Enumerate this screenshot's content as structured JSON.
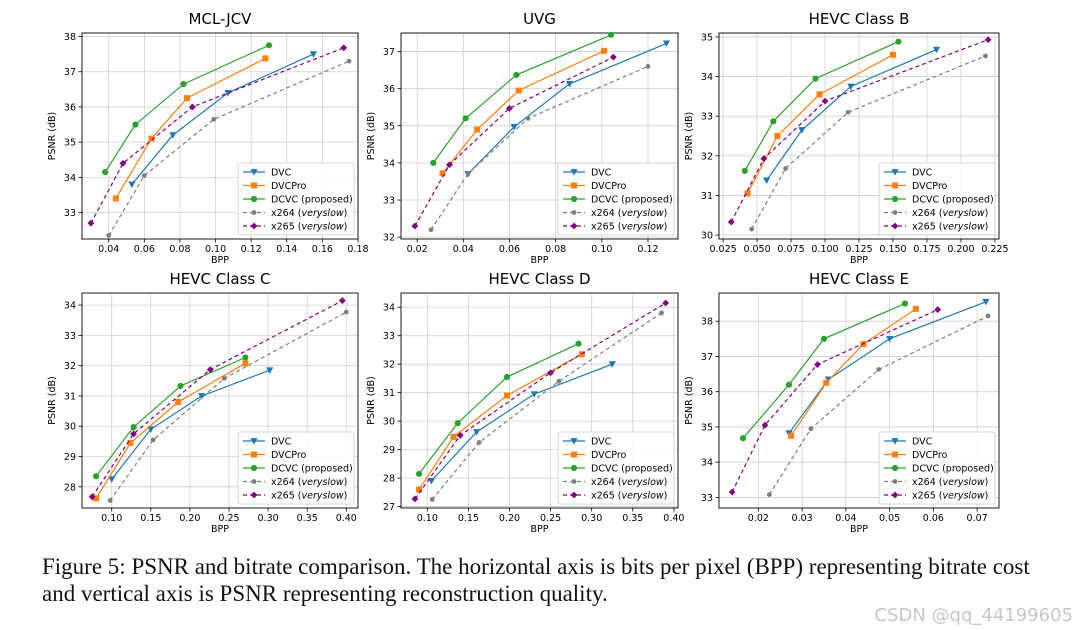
{
  "figure_caption": "Figure 5: PSNR and bitrate comparison. The horizontal axis is bits per pixel (BPP) representing bitrate cost and vertical axis is PSNR representing reconstruction quality.",
  "watermark": "CSDN @qq_44199605",
  "colors": {
    "DVC": "#1f77b4",
    "DVCPro": "#ff7f0e",
    "DCVC": "#2ca02c",
    "x264": "#7f7f7f",
    "x265": "#800080"
  },
  "legend_labels": [
    {
      "key": "DVC",
      "text": "DVC",
      "italic": ""
    },
    {
      "key": "DVCPro",
      "text": "DVCPro",
      "italic": ""
    },
    {
      "key": "DCVC",
      "text": "DCVC (proposed)",
      "italic": ""
    },
    {
      "key": "x264",
      "text": "x264 (",
      "italic": "veryslow",
      "tail": ")"
    },
    {
      "key": "x265",
      "text": "x265 (",
      "italic": "veryslow",
      "tail": ")"
    }
  ],
  "chart_data": [
    {
      "type": "line",
      "title": "MCL-JCV",
      "xlabel": "BPP",
      "ylabel": "PSNR (dB)",
      "xlim": [
        0.025,
        0.18
      ],
      "ylim": [
        32.25,
        38.1
      ],
      "xticks": [
        0.04,
        0.06,
        0.08,
        0.1,
        0.12,
        0.14,
        0.16,
        0.18
      ],
      "xtick_labels": [
        "0.04",
        "0.06",
        "0.08",
        "0.10",
        "0.12",
        "0.14",
        "0.16",
        "0.18"
      ],
      "yticks": [
        33,
        34,
        35,
        36,
        37,
        38
      ],
      "ytick_labels": [
        "33",
        "34",
        "35",
        "36",
        "37",
        "38"
      ],
      "series": [
        {
          "name": "DVC",
          "x": [
            0.053,
            0.076,
            0.107,
            0.155
          ],
          "y": [
            33.8,
            35.2,
            36.4,
            37.5
          ]
        },
        {
          "name": "DVCPro",
          "x": [
            0.044,
            0.064,
            0.084,
            0.128
          ],
          "y": [
            33.4,
            35.1,
            36.25,
            37.38
          ]
        },
        {
          "name": "DCVC",
          "x": [
            0.038,
            0.055,
            0.082,
            0.13
          ],
          "y": [
            34.15,
            35.5,
            36.65,
            37.75
          ]
        },
        {
          "name": "x264",
          "x": [
            0.04,
            0.06,
            0.099,
            0.175
          ],
          "y": [
            32.35,
            34.05,
            35.65,
            37.3
          ]
        },
        {
          "name": "x265",
          "x": [
            0.03,
            0.048,
            0.087,
            0.172
          ],
          "y": [
            32.7,
            34.4,
            36.0,
            37.68
          ]
        }
      ]
    },
    {
      "type": "line",
      "title": "UVG",
      "xlabel": "BPP",
      "ylabel": "PSNR (dB)",
      "xlim": [
        0.013,
        0.133
      ],
      "ylim": [
        31.95,
        37.5
      ],
      "xticks": [
        0.02,
        0.04,
        0.06,
        0.08,
        0.1,
        0.12
      ],
      "xtick_labels": [
        "0.02",
        "0.04",
        "0.06",
        "0.08",
        "0.10",
        "0.12"
      ],
      "yticks": [
        32,
        33,
        34,
        35,
        36,
        37
      ],
      "ytick_labels": [
        "32",
        "33",
        "34",
        "35",
        "36",
        "37"
      ],
      "series": [
        {
          "name": "DVC",
          "x": [
            0.042,
            0.062,
            0.086,
            0.128
          ],
          "y": [
            33.7,
            34.97,
            36.13,
            37.22
          ]
        },
        {
          "name": "DVCPro",
          "x": [
            0.031,
            0.046,
            0.064,
            0.101
          ],
          "y": [
            33.72,
            34.9,
            35.95,
            37.02
          ]
        },
        {
          "name": "DCVC",
          "x": [
            0.027,
            0.041,
            0.063,
            0.104
          ],
          "y": [
            34.0,
            35.2,
            36.37,
            37.45
          ]
        },
        {
          "name": "x264",
          "x": [
            0.026,
            0.042,
            0.068,
            0.12
          ],
          "y": [
            32.2,
            33.7,
            35.2,
            36.6
          ]
        },
        {
          "name": "x265",
          "x": [
            0.019,
            0.034,
            0.06,
            0.105
          ],
          "y": [
            32.3,
            33.95,
            35.47,
            36.85
          ]
        }
      ]
    },
    {
      "type": "line",
      "title": "HEVC Class B",
      "xlabel": "BPP",
      "ylabel": "PSNR (dB)",
      "xlim": [
        0.022,
        0.228
      ],
      "ylim": [
        29.9,
        35.1
      ],
      "xticks": [
        0.025,
        0.05,
        0.075,
        0.1,
        0.125,
        0.15,
        0.175,
        0.2,
        0.225
      ],
      "xtick_labels": [
        "0.025",
        "0.050",
        "0.075",
        "0.100",
        "0.125",
        "0.150",
        "0.175",
        "0.200",
        "0.225"
      ],
      "yticks": [
        30,
        31,
        32,
        33,
        34,
        35
      ],
      "ytick_labels": [
        "30",
        "31",
        "32",
        "33",
        "34",
        "35"
      ],
      "series": [
        {
          "name": "DVC",
          "x": [
            0.057,
            0.083,
            0.119,
            0.182
          ],
          "y": [
            31.38,
            32.65,
            33.75,
            34.68
          ]
        },
        {
          "name": "DVCPro",
          "x": [
            0.043,
            0.065,
            0.096,
            0.15
          ],
          "y": [
            31.05,
            32.5,
            33.55,
            34.55
          ]
        },
        {
          "name": "DCVC",
          "x": [
            0.041,
            0.062,
            0.093,
            0.154
          ],
          "y": [
            31.62,
            32.87,
            33.95,
            34.88
          ]
        },
        {
          "name": "x264",
          "x": [
            0.046,
            0.071,
            0.117,
            0.218
          ],
          "y": [
            30.15,
            31.68,
            33.1,
            34.52
          ]
        },
        {
          "name": "x265",
          "x": [
            0.031,
            0.055,
            0.1,
            0.22
          ],
          "y": [
            30.33,
            31.93,
            33.38,
            34.93
          ]
        }
      ]
    },
    {
      "type": "line",
      "title": "HEVC Class C",
      "xlabel": "BPP",
      "ylabel": "PSNR (dB)",
      "xlim": [
        0.062,
        0.415
      ],
      "ylim": [
        27.3,
        34.4
      ],
      "xticks": [
        0.1,
        0.15,
        0.2,
        0.25,
        0.3,
        0.35,
        0.4
      ],
      "xtick_labels": [
        "0.10",
        "0.15",
        "0.20",
        "0.25",
        "0.30",
        "0.35",
        "0.40"
      ],
      "yticks": [
        28,
        29,
        30,
        31,
        32,
        33,
        34
      ],
      "ytick_labels": [
        "28",
        "29",
        "30",
        "31",
        "32",
        "33",
        "34"
      ],
      "series": [
        {
          "name": "DVC",
          "x": [
            0.1,
            0.15,
            0.215,
            0.302
          ],
          "y": [
            28.25,
            29.9,
            31.0,
            31.85
          ]
        },
        {
          "name": "DVCPro",
          "x": [
            0.08,
            0.124,
            0.185,
            0.271
          ],
          "y": [
            27.62,
            29.45,
            30.8,
            32.08
          ]
        },
        {
          "name": "DCVC",
          "x": [
            0.08,
            0.128,
            0.188,
            0.271
          ],
          "y": [
            28.35,
            29.97,
            31.33,
            32.27
          ]
        },
        {
          "name": "x264",
          "x": [
            0.098,
            0.153,
            0.244,
            0.4
          ],
          "y": [
            27.55,
            29.55,
            31.58,
            33.77
          ]
        },
        {
          "name": "x265",
          "x": [
            0.075,
            0.128,
            0.226,
            0.395
          ],
          "y": [
            27.67,
            29.75,
            31.87,
            34.15
          ]
        }
      ]
    },
    {
      "type": "line",
      "title": "HEVC Class D",
      "xlabel": "BPP",
      "ylabel": "PSNR (dB)",
      "xlim": [
        0.068,
        0.405
      ],
      "ylim": [
        26.95,
        34.5
      ],
      "xticks": [
        0.1,
        0.15,
        0.2,
        0.25,
        0.3,
        0.35,
        0.4
      ],
      "xtick_labels": [
        "0.10",
        "0.15",
        "0.20",
        "0.25",
        "0.30",
        "0.35",
        "0.40"
      ],
      "yticks": [
        27,
        28,
        29,
        30,
        31,
        32,
        33,
        34
      ],
      "ytick_labels": [
        "27",
        "28",
        "29",
        "30",
        "31",
        "32",
        "33",
        "34"
      ],
      "series": [
        {
          "name": "DVC",
          "x": [
            0.105,
            0.16,
            0.23,
            0.325
          ],
          "y": [
            27.9,
            29.62,
            30.95,
            32.0
          ]
        },
        {
          "name": "DVCPro",
          "x": [
            0.09,
            0.132,
            0.197,
            0.288
          ],
          "y": [
            27.6,
            29.45,
            30.9,
            32.35
          ]
        },
        {
          "name": "DCVC",
          "x": [
            0.09,
            0.137,
            0.197,
            0.284
          ],
          "y": [
            28.15,
            29.93,
            31.55,
            32.72
          ]
        },
        {
          "name": "x264",
          "x": [
            0.106,
            0.163,
            0.26,
            0.385
          ],
          "y": [
            27.25,
            29.25,
            31.4,
            33.8
          ]
        },
        {
          "name": "x265",
          "x": [
            0.085,
            0.14,
            0.25,
            0.39
          ],
          "y": [
            27.27,
            29.5,
            31.7,
            34.15
          ]
        }
      ]
    },
    {
      "type": "line",
      "title": "HEVC Class E",
      "xlabel": "BPP",
      "ylabel": "PSNR (dB)",
      "xlim": [
        0.011,
        0.075
      ],
      "ylim": [
        32.7,
        38.8
      ],
      "xticks": [
        0.02,
        0.03,
        0.04,
        0.05,
        0.06,
        0.07
      ],
      "xtick_labels": [
        "0.02",
        "0.03",
        "0.04",
        "0.05",
        "0.06",
        "0.07"
      ],
      "yticks": [
        33,
        34,
        35,
        36,
        37,
        38
      ],
      "ytick_labels": [
        "33",
        "34",
        "35",
        "36",
        "37",
        "38"
      ],
      "series": [
        {
          "name": "DVC",
          "x": [
            0.027,
            0.036,
            0.05,
            0.072
          ],
          "y": [
            34.82,
            36.35,
            37.5,
            38.55
          ]
        },
        {
          "name": "DVCPro",
          "x": [
            0.0275,
            0.0355,
            0.044,
            0.056
          ],
          "y": [
            34.75,
            36.25,
            37.35,
            38.35
          ]
        },
        {
          "name": "DCVC",
          "x": [
            0.0165,
            0.027,
            0.035,
            0.0535
          ],
          "y": [
            34.68,
            36.2,
            37.5,
            38.5
          ]
        },
        {
          "name": "x264",
          "x": [
            0.0225,
            0.032,
            0.0475,
            0.0725
          ],
          "y": [
            33.08,
            34.95,
            36.63,
            38.15
          ]
        },
        {
          "name": "x265",
          "x": [
            0.014,
            0.0215,
            0.0335,
            0.061
          ],
          "y": [
            33.15,
            35.05,
            36.77,
            38.33
          ]
        }
      ]
    }
  ]
}
